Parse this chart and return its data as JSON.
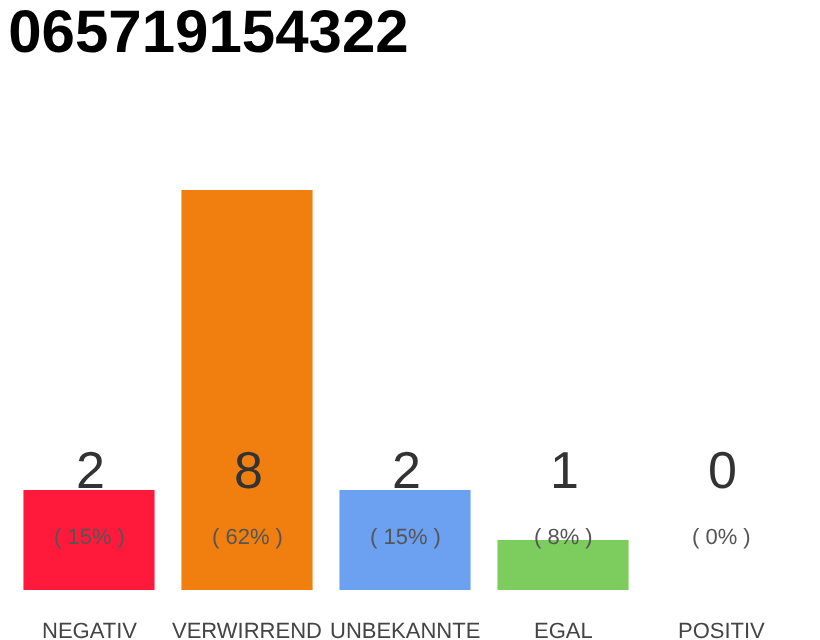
{
  "chart_data": {
    "type": "bar",
    "title": "065719154322",
    "categories": [
      "NEGATIV",
      "VERWIRREND",
      "UNBEKANNTE",
      "EGAL",
      "POSITIV"
    ],
    "values": [
      2,
      8,
      2,
      1,
      0
    ],
    "colors": [
      "#ff1a3c",
      "#f07f0f",
      "#6ca0f0",
      "#7dcc5e",
      "#b0b0b0"
    ],
    "value_labels": [
      "2\n( 15% )",
      "8\n( 62% )",
      "2\n( 15% )",
      "1\n( 8% )",
      "0\n( 0% )"
    ]
  }
}
